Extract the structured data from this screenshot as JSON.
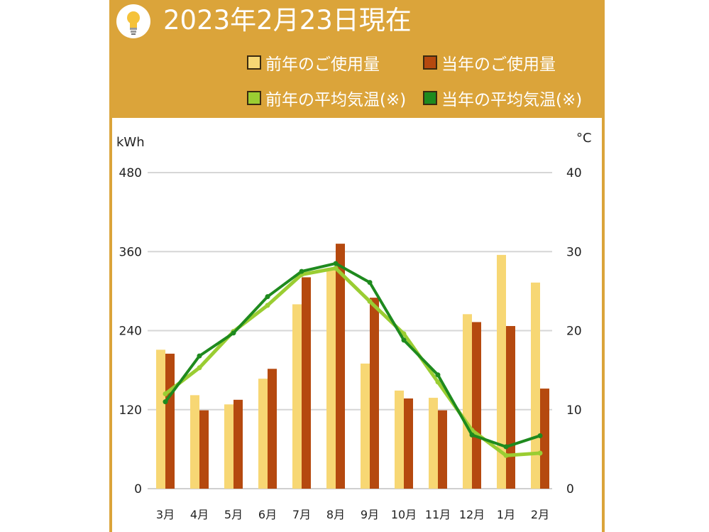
{
  "header": {
    "title": "2023年2月23日現在",
    "icon": "lightbulb-icon"
  },
  "legend": [
    {
      "label": "前年のご使用量",
      "color": "#f7d774"
    },
    {
      "label": "当年のご使用量",
      "color": "#b5490f"
    },
    {
      "label": "前年の平均気温(※)",
      "color": "#9acd32"
    },
    {
      "label": "当年の平均気温(※)",
      "color": "#1e8a1e"
    }
  ],
  "chart_data": {
    "type": "bar",
    "categories": [
      "3月",
      "4月",
      "5月",
      "6月",
      "7月",
      "8月",
      "9月",
      "10月",
      "11月",
      "12月",
      "1月",
      "2月"
    ],
    "y_left_label": "kWh",
    "y_right_label": "°C",
    "y_left_ticks": [
      "0",
      "120",
      "240",
      "360",
      "480"
    ],
    "y_right_ticks": [
      "0",
      "10",
      "20",
      "30",
      "40"
    ],
    "ylim_left": [
      0,
      480
    ],
    "ylim_right": [
      0,
      40
    ],
    "grid": true,
    "series": [
      {
        "name": "前年のご使用量",
        "type": "bar",
        "axis": "left",
        "color": "#f7d774",
        "values": [
          211,
          142,
          128,
          167,
          280,
          335,
          190,
          149,
          138,
          265,
          355,
          313
        ]
      },
      {
        "name": "当年のご使用量",
        "type": "bar",
        "axis": "left",
        "color": "#b5490f",
        "values": [
          205,
          119,
          135,
          182,
          321,
          372,
          290,
          137,
          119,
          253,
          247,
          152
        ]
      },
      {
        "name": "前年の平均気温(※)",
        "type": "line",
        "axis": "right",
        "color": "#9acd32",
        "values": [
          12.0,
          15.3,
          19.9,
          23.2,
          27.1,
          27.9,
          23.7,
          19.6,
          13.5,
          7.4,
          4.2,
          4.5
        ]
      },
      {
        "name": "当年の平均気温(※)",
        "type": "line",
        "axis": "right",
        "color": "#1e8a1e",
        "values": [
          11.0,
          16.8,
          19.7,
          24.3,
          27.5,
          28.5,
          26.1,
          18.8,
          14.4,
          6.8,
          5.3,
          6.7
        ]
      }
    ]
  }
}
